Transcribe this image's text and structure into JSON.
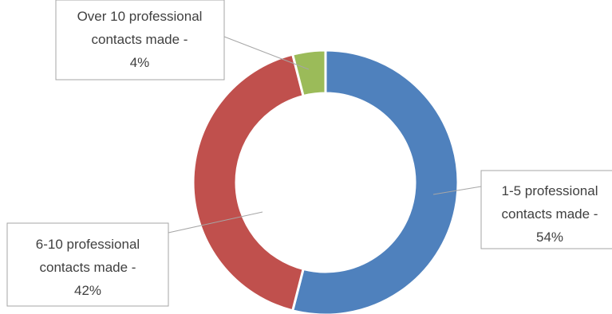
{
  "chart_data": {
    "type": "pie",
    "variant": "doughnut",
    "title": "",
    "series": [
      {
        "values": [
          54,
          42,
          4
        ]
      }
    ],
    "categories": [
      "1-5 professional contacts made",
      "6-10 professional contacts made",
      "Over 10 professional contacts made"
    ],
    "values": [
      54,
      42,
      4
    ],
    "colors": [
      "#4f81bd",
      "#c0504d",
      "#9bbb59"
    ],
    "labels": [
      {
        "category": "1-5 professional contacts made",
        "lines": [
          "1-5 professional",
          "contacts made -",
          "54%"
        ]
      },
      {
        "category": "6-10 professional contacts made",
        "lines": [
          "6-10 professional",
          "contacts made -",
          "42%"
        ]
      },
      {
        "category": "Over 10 professional contacts made",
        "lines": [
          "Over 10 professional",
          "contacts made -",
          "4%"
        ]
      }
    ],
    "legend": "none",
    "start_angle": "top",
    "direction": "clockwise"
  }
}
